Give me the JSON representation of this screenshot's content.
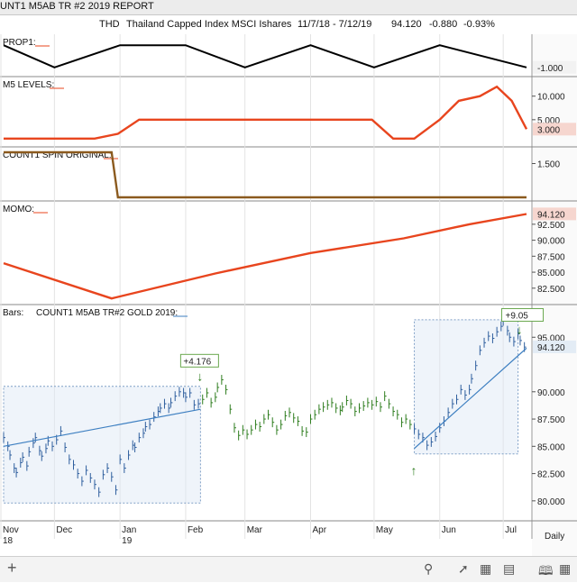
{
  "window": {
    "title": "UNT1 M5AB TR #2 2019 REPORT"
  },
  "header": {
    "symbol": "THD",
    "name": "Thailand Capped Index MSCI Ishares",
    "date_range": "11/7/18 - 7/12/19",
    "last": "94.120",
    "change": "-0.880",
    "change_pct": "-0.93%"
  },
  "toolbar": {
    "add_icon": "plus-icon",
    "search_icon": "search-icon",
    "draw_icon": "trendline-icon",
    "grid_icon": "grid-icon",
    "panel_icon": "panel-icon",
    "book_icon": "book-icon",
    "layout_icon": "layout-icon",
    "period_label": "Daily"
  },
  "chart_data": [
    {
      "type": "line",
      "title": "PROP1:",
      "value_label": "-1.000",
      "color": "#000000",
      "ylim": [
        -1.5,
        1.5
      ],
      "x": [
        "2018-11-07",
        "2018-12-01",
        "2019-01-01",
        "2019-02-01",
        "2019-03-01",
        "2019-04-01",
        "2019-05-01",
        "2019-06-01",
        "2019-07-12"
      ],
      "y": [
        1,
        -1,
        1,
        1,
        -1,
        1,
        -1,
        1,
        -1
      ]
    },
    {
      "type": "line",
      "title": "M5 LEVELS:",
      "value_label": "3.000",
      "ticks": [
        "10.000",
        "5.000"
      ],
      "color": "#e8451e",
      "ylim": [
        0,
        13
      ],
      "x": [
        "2018-11-07",
        "2018-12-20",
        "2018-12-31",
        "2019-01-10",
        "2019-01-20",
        "2019-04-30",
        "2019-05-10",
        "2019-05-20",
        "2019-06-01",
        "2019-06-10",
        "2019-06-20",
        "2019-06-28",
        "2019-07-05",
        "2019-07-12"
      ],
      "y": [
        1,
        1,
        2,
        5,
        5,
        5,
        1,
        1,
        5,
        9,
        10,
        12,
        9,
        3
      ]
    },
    {
      "type": "line",
      "title": "COUNT1 SPIN ORIGINAL:",
      "ticks": [
        "1.500"
      ],
      "color": "#8b5a1e",
      "ylim": [
        0,
        2
      ],
      "x": [
        "2018-11-07",
        "2018-12-28",
        "2018-12-31",
        "2019-07-12"
      ],
      "y": [
        2,
        2,
        0,
        0
      ]
    },
    {
      "type": "line",
      "title": "MOMO:",
      "value_label": "94.120",
      "ticks": [
        "92.500",
        "90.000",
        "87.500",
        "85.000",
        "82.500"
      ],
      "color": "#e8451e",
      "ylim": [
        80.5,
        95.3
      ],
      "x": [
        "2018-11-07",
        "2018-12-28",
        "2019-02-15",
        "2019-04-01",
        "2019-05-15",
        "2019-06-15",
        "2019-07-12"
      ],
      "y": [
        86.4,
        80.9,
        84.8,
        88.0,
        90.3,
        92.5,
        94.1
      ]
    },
    {
      "type": "bar",
      "title": "Bars:",
      "series_label": "COUNT1 M5AB TR#2 GOLD 2019:",
      "last_label": "94.120",
      "ticks": [
        "95.000",
        "90.000",
        "87.500",
        "85.000",
        "82.500",
        "80.000"
      ],
      "ylim": [
        78.5,
        97.5
      ],
      "annotations": [
        {
          "text": "+4.176",
          "date": "2019-02-08"
        },
        {
          "text": "+9.05",
          "date": "2019-07-02"
        }
      ],
      "regression_lines": [
        {
          "x": [
            "2018-11-07",
            "2019-02-08"
          ],
          "y": [
            85.0,
            88.4
          ]
        },
        {
          "x": [
            "2019-05-20",
            "2019-07-12"
          ],
          "y": [
            84.8,
            94.0
          ]
        }
      ],
      "highlight_boxes": [
        {
          "x": [
            "2018-11-07",
            "2019-02-08"
          ],
          "y": [
            79.8,
            90.5
          ]
        },
        {
          "x": [
            "2019-05-20",
            "2019-07-08"
          ],
          "y": [
            84.3,
            96.6
          ]
        }
      ],
      "closes_by_month": {
        "2018-11": [
          85.8,
          85.0,
          84.2,
          83.0,
          82.6,
          83.5,
          84.0,
          83.2,
          84.5,
          85.3,
          85.8,
          84.6,
          84.1,
          84.8,
          85.5,
          85.0
        ],
        "2018-12": [
          85.6,
          86.4,
          84.9,
          83.8,
          83.3,
          82.5,
          81.8,
          82.8,
          82.1,
          81.5,
          80.8,
          82.4,
          83.0,
          82.2,
          81.0
        ],
        "2019-01": [
          83.8,
          83.0,
          84.2,
          85.1,
          84.9,
          85.8,
          86.2,
          86.8,
          87.0,
          87.7,
          88.2,
          88.5,
          88.9,
          88.5,
          89.0,
          89.6,
          90.0,
          89.9
        ],
        "2019-02": [
          89.5,
          89.9,
          88.8,
          88.9,
          89.3,
          89.9,
          89.0,
          89.5,
          90.4,
          91.1,
          90.2,
          88.4,
          86.7,
          86.0,
          86.5
        ],
        "2019-03": [
          86.1,
          86.5,
          87.0,
          86.8,
          87.5,
          87.9,
          87.2,
          86.5,
          87.0,
          87.8,
          88.1,
          87.6,
          87.3,
          86.4,
          86.3
        ],
        "2019-04": [
          87.5,
          87.9,
          88.4,
          88.6,
          88.8,
          89.0,
          88.5,
          88.3,
          88.6,
          89.2,
          88.9,
          88.2,
          88.5,
          88.7,
          89.0,
          88.8
        ],
        "2019-05": [
          89.1,
          88.6,
          89.6,
          88.9,
          88.2,
          87.9,
          87.2,
          87.5,
          87.0,
          86.6,
          86.1,
          85.8,
          85.1,
          85.4,
          85.9
        ],
        "2019-06": [
          86.7,
          87.3,
          88.1,
          88.9,
          89.3,
          90.2,
          89.7,
          90.2,
          91.2,
          92.4,
          93.8,
          94.5,
          95.1,
          94.9,
          95.5,
          96.0
        ],
        "2019-07": [
          96.5,
          95.6,
          95.0,
          94.6,
          95.3,
          94.7,
          94.1
        ]
      }
    }
  ],
  "x_axis": {
    "months": [
      "Nov",
      "Dec",
      "Jan",
      "Feb",
      "Mar",
      "Apr",
      "May",
      "Jun",
      "Jul"
    ],
    "years": [
      "18",
      "19"
    ]
  }
}
